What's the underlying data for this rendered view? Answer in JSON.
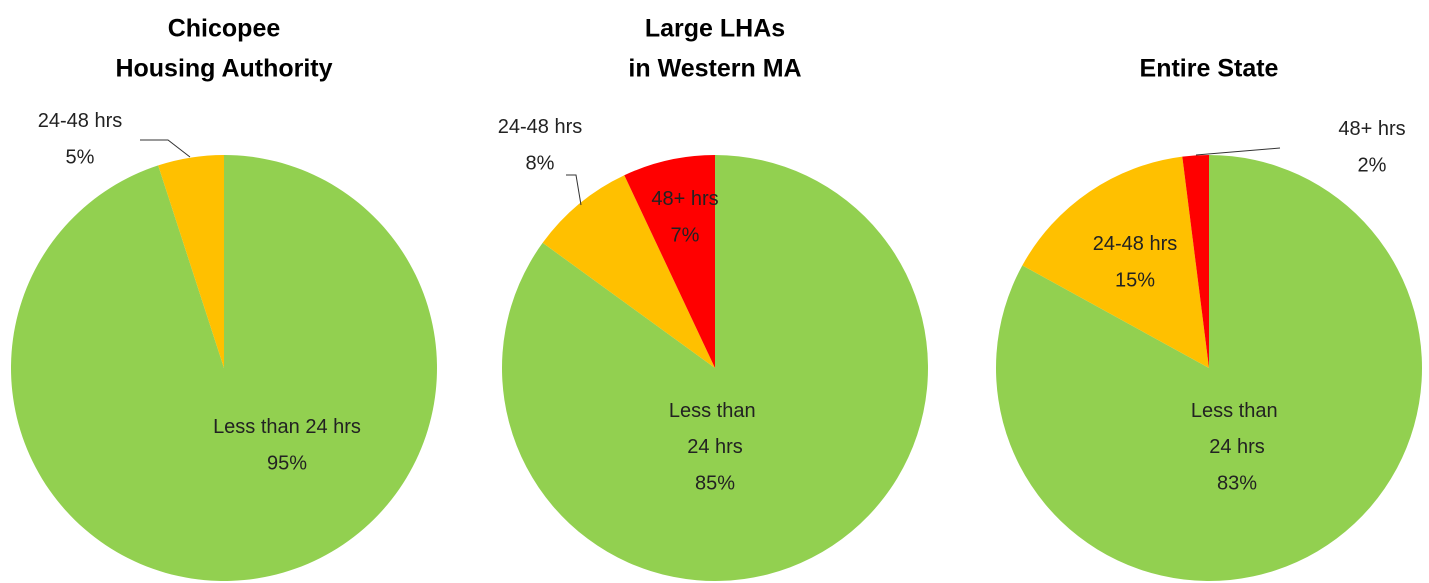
{
  "chart_data": [
    {
      "type": "pie",
      "title": [
        "Chicopee",
        "Housing Authority"
      ],
      "categories": [
        "Less than 24 hrs",
        "24-48 hrs"
      ],
      "values": [
        95,
        5
      ],
      "value_labels": [
        "95%",
        "5%"
      ],
      "colors": [
        "#92d050",
        "#ffc000"
      ]
    },
    {
      "type": "pie",
      "title": [
        "Large LHAs",
        "in Western MA"
      ],
      "categories": [
        "Less than 24 hrs",
        "24-48 hrs",
        "48+ hrs"
      ],
      "values": [
        85,
        8,
        7
      ],
      "value_labels": [
        "85%",
        "8%",
        "7%"
      ],
      "colors": [
        "#92d050",
        "#ffc000",
        "#ff0000"
      ]
    },
    {
      "type": "pie",
      "title": [
        "Entire State"
      ],
      "categories": [
        "Less than 24 hrs",
        "24-48 hrs",
        "48+ hrs"
      ],
      "values": [
        83,
        15,
        2
      ],
      "value_labels": [
        "83%",
        "15%",
        "2%"
      ],
      "colors": [
        "#92d050",
        "#ffc000",
        "#ff0000"
      ]
    }
  ]
}
